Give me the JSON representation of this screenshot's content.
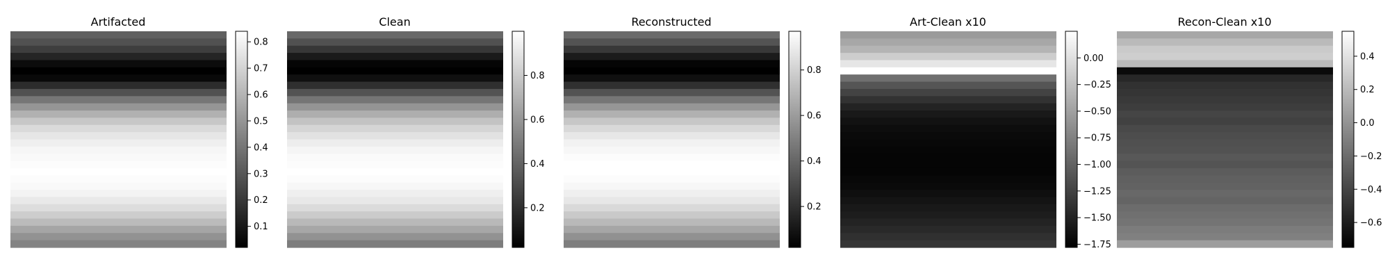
{
  "chart_data": [
    {
      "type": "heatmap",
      "title": "Artifacted",
      "colormap": "gray",
      "value_range": [
        0.02,
        0.84
      ],
      "colorbar_ticks": [
        "0.1",
        "0.2",
        "0.3",
        "0.4",
        "0.5",
        "0.6",
        "0.7",
        "0.8"
      ],
      "colorbar_tick_values": [
        0.1,
        0.2,
        0.3,
        0.4,
        0.5,
        0.6,
        0.7,
        0.8
      ],
      "row_profile": [
        0.33,
        0.28,
        0.22,
        0.14,
        0.06,
        0.02,
        0.05,
        0.16,
        0.28,
        0.4,
        0.5,
        0.59,
        0.66,
        0.72,
        0.76,
        0.79,
        0.81,
        0.82,
        0.83,
        0.84,
        0.83,
        0.82,
        0.8,
        0.77,
        0.73,
        0.68,
        0.62,
        0.55,
        0.49,
        0.44
      ]
    },
    {
      "type": "heatmap",
      "title": "Clean",
      "colormap": "gray",
      "value_range": [
        0.02,
        1.0
      ],
      "colorbar_ticks": [
        "0.2",
        "0.4",
        "0.6",
        "0.8"
      ],
      "colorbar_tick_values": [
        0.2,
        0.4,
        0.6,
        0.8
      ],
      "row_profile": [
        0.42,
        0.33,
        0.23,
        0.12,
        0.04,
        0.02,
        0.08,
        0.2,
        0.34,
        0.47,
        0.59,
        0.69,
        0.77,
        0.84,
        0.89,
        0.93,
        0.96,
        0.98,
        0.99,
        1.0,
        0.99,
        0.97,
        0.94,
        0.91,
        0.86,
        0.8,
        0.73,
        0.66,
        0.58,
        0.5
      ]
    },
    {
      "type": "heatmap",
      "title": "Reconstructed",
      "colormap": "gray",
      "value_range": [
        0.02,
        0.97
      ],
      "colorbar_ticks": [
        "0.2",
        "0.4",
        "0.6",
        "0.8"
      ],
      "colorbar_tick_values": [
        0.2,
        0.4,
        0.6,
        0.8
      ],
      "row_profile": [
        0.42,
        0.33,
        0.23,
        0.12,
        0.04,
        0.02,
        0.08,
        0.2,
        0.33,
        0.46,
        0.58,
        0.68,
        0.76,
        0.83,
        0.88,
        0.92,
        0.94,
        0.96,
        0.97,
        0.97,
        0.96,
        0.94,
        0.91,
        0.88,
        0.83,
        0.77,
        0.71,
        0.64,
        0.56,
        0.49
      ]
    },
    {
      "type": "heatmap",
      "title": "Art-Clean x10",
      "colormap": "gray",
      "value_range": [
        -1.78,
        0.25
      ],
      "colorbar_ticks": [
        "0.00",
        "−0.25",
        "−0.50",
        "−0.75",
        "−1.00",
        "−1.25",
        "−1.50",
        "−1.75"
      ],
      "colorbar_tick_values": [
        0.0,
        -0.25,
        -0.5,
        -0.75,
        -1.0,
        -1.25,
        -1.5,
        -1.75
      ],
      "row_profile": [
        -0.55,
        -0.45,
        -0.35,
        -0.15,
        0.05,
        0.25,
        -0.9,
        -1.1,
        -1.25,
        -1.38,
        -1.5,
        -1.58,
        -1.64,
        -1.68,
        -1.7,
        -1.72,
        -1.73,
        -1.74,
        -1.74,
        -1.74,
        -1.72,
        -1.7,
        -1.66,
        -1.62,
        -1.58,
        -1.55,
        -1.5,
        -1.45,
        -1.4,
        -1.35
      ]
    },
    {
      "type": "heatmap",
      "title": "Recon-Clean x10",
      "colormap": "gray",
      "value_range": [
        -0.75,
        0.55
      ],
      "colorbar_ticks": [
        "0.4",
        "0.2",
        "0.0",
        "−0.2",
        "−0.4",
        "−0.6"
      ],
      "colorbar_tick_values": [
        0.4,
        0.2,
        0.0,
        -0.2,
        -0.4,
        -0.6
      ],
      "row_profile": [
        0.1,
        0.2,
        0.28,
        0.3,
        0.2,
        -0.7,
        -0.55,
        -0.5,
        -0.48,
        -0.46,
        -0.44,
        -0.4,
        -0.42,
        -0.38,
        -0.36,
        -0.34,
        -0.33,
        -0.3,
        -0.32,
        -0.28,
        -0.26,
        -0.25,
        -0.22,
        -0.24,
        -0.2,
        -0.18,
        -0.16,
        -0.12,
        -0.1,
        0.05
      ]
    }
  ]
}
